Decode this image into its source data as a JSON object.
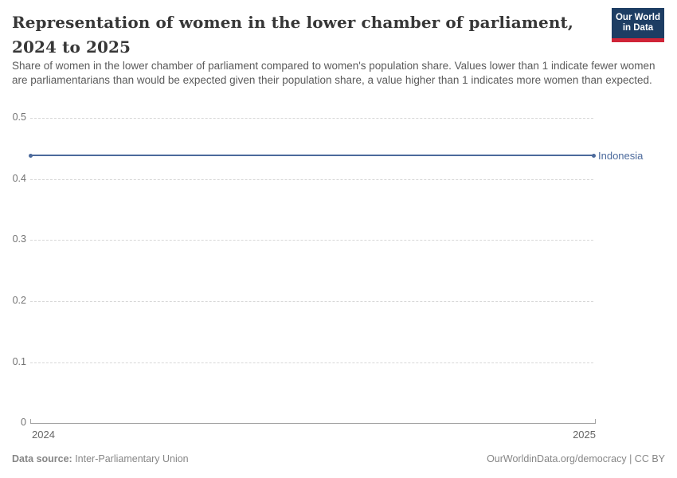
{
  "header": {
    "title": "Representation of women in the lower chamber of parliament, 2024 to 2025",
    "subtitle": "Share of women in the lower chamber of parliament compared to women's population share. Values lower than 1 indicate fewer women are parliamentarians than would be expected given their population share, a value higher than 1 indicates more women than expected.",
    "logo": {
      "line1": "Our World",
      "line2": "in Data"
    }
  },
  "chart_data": {
    "type": "line",
    "x": [
      2024,
      2025
    ],
    "series": [
      {
        "name": "Indonesia",
        "values": [
          0.44,
          0.44
        ],
        "color": "#4c6a9c"
      }
    ],
    "title": "Representation of women in the lower chamber of parliament, 2024 to 2025",
    "xlabel": "",
    "ylabel": "",
    "ylim": [
      0,
      0.5
    ],
    "yticks": [
      "0",
      "0.1",
      "0.2",
      "0.3",
      "0.4",
      "0.5"
    ],
    "xticks": [
      "2024",
      "2025"
    ],
    "grid": "horizontal dashed gridlines, solid zero axis with end ticks",
    "legend_position": "label at right end of line"
  },
  "footer": {
    "source_prefix": "Data source:",
    "source": " Inter-Parliamentary Union",
    "credit_link": "OurWorldinData.org/democracy",
    "credit_license": " | CC BY"
  },
  "colors": {
    "line": "#4c6a9c",
    "grid": "#d8d8d8",
    "axis": "#a3a3a3",
    "title_text": "#373737",
    "muted_text": "#868686",
    "logo_bg": "#1d3d63",
    "logo_accent": "#cf2437"
  }
}
